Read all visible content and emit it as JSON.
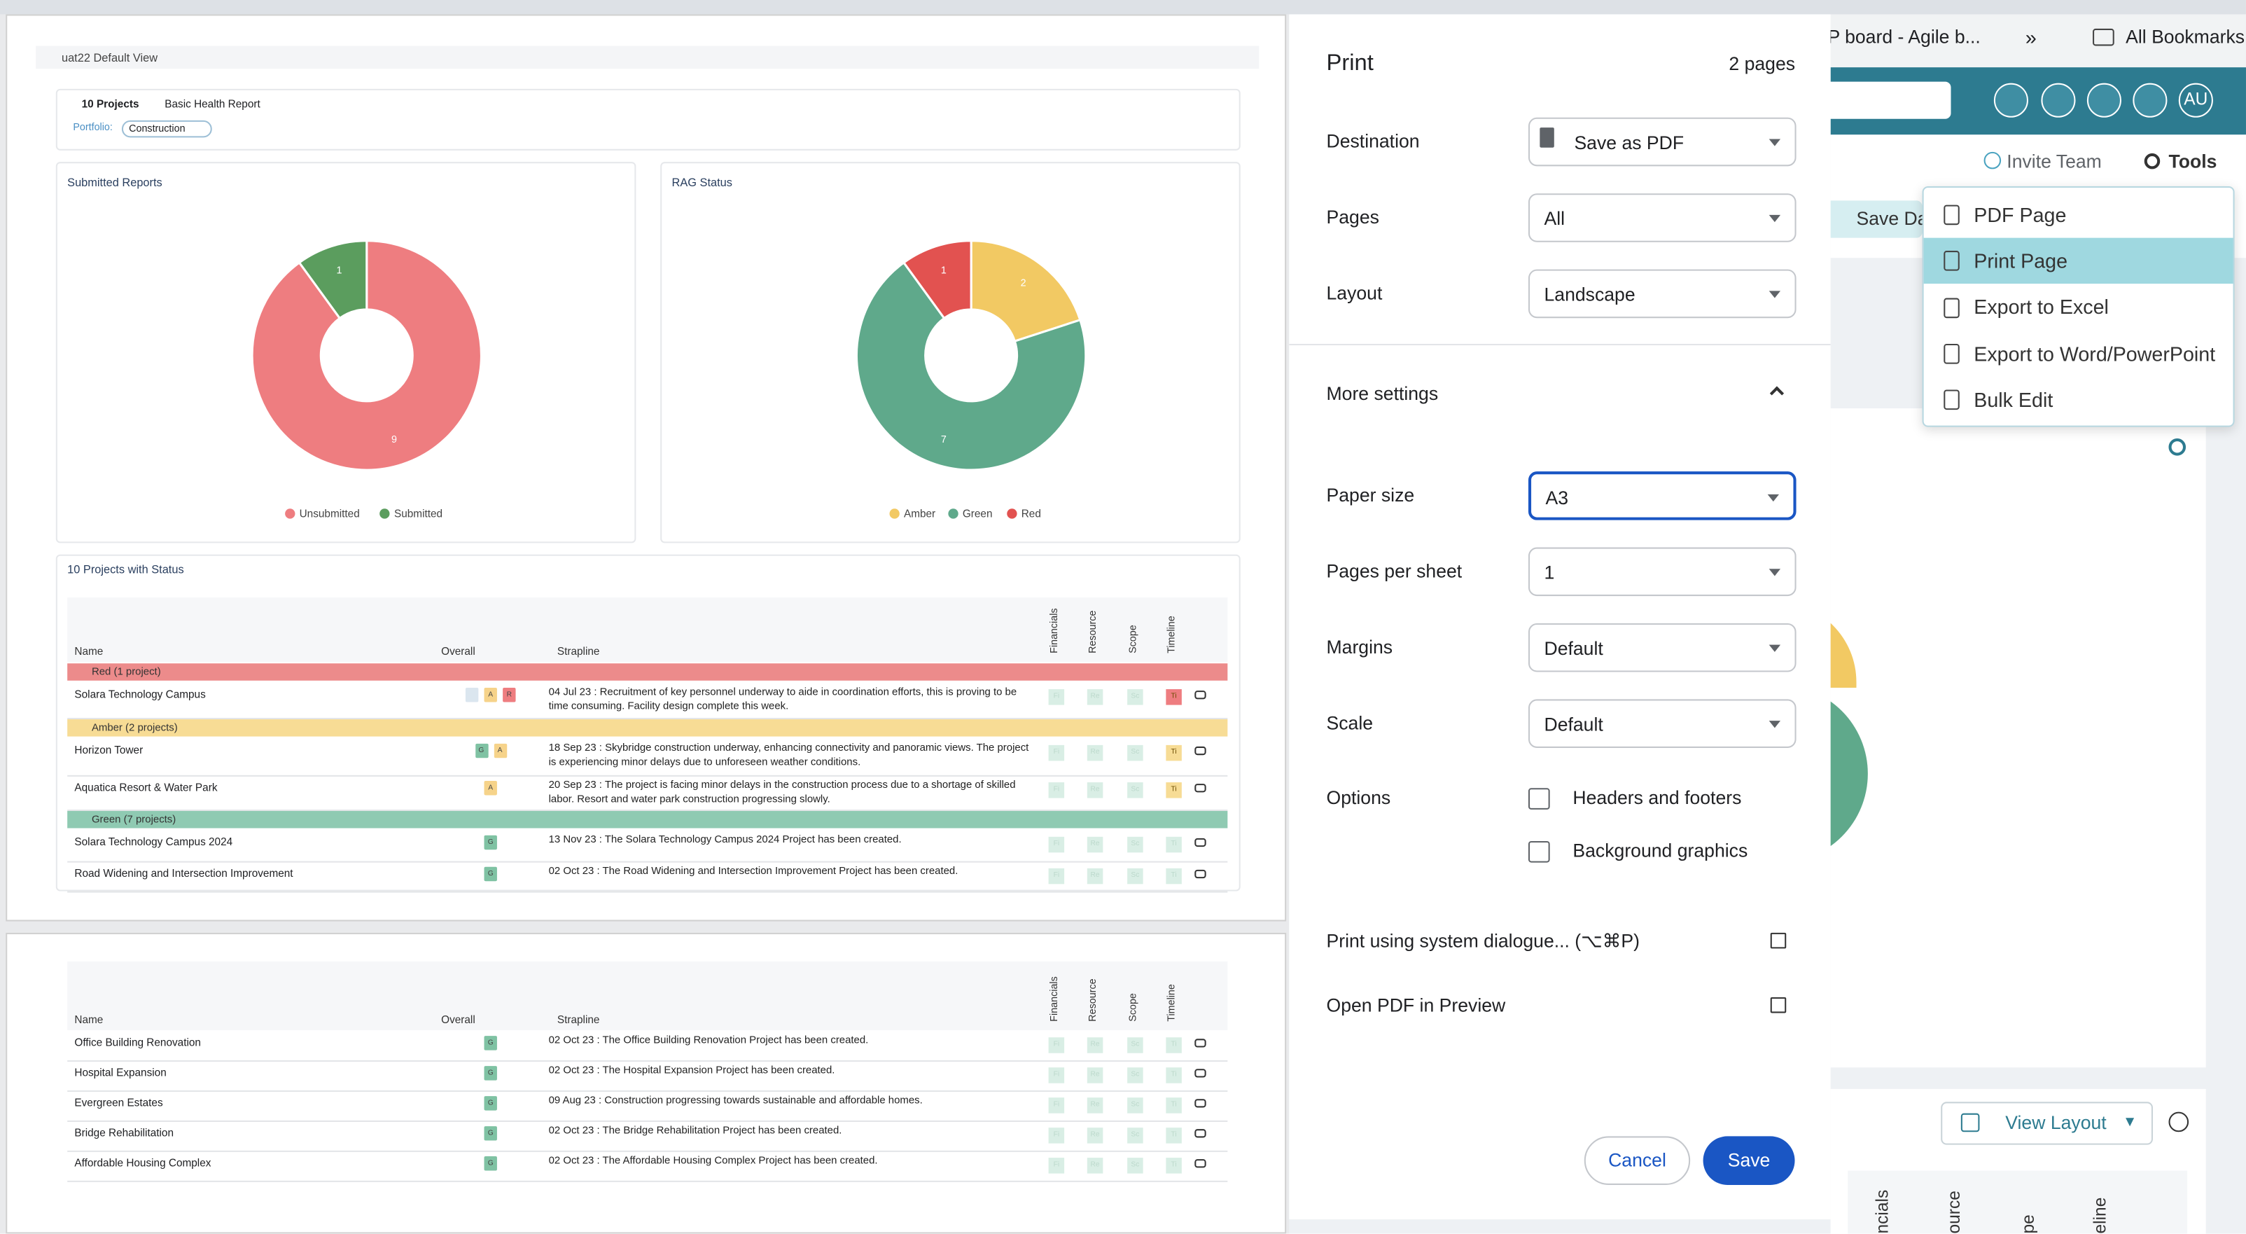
{
  "browser": {
    "bookmarks": [
      "FP board - Agile b...",
      "All Bookmarks"
    ]
  },
  "app": {
    "avatar": "AU",
    "invite": "Invite Team",
    "tools": "Tools",
    "save": "Save Da",
    "menu": [
      "PDF Page",
      "Print Page",
      "Export to Excel",
      "Export to Word/PowerPoint",
      "Bulk Edit"
    ],
    "menu_highlighted": 1,
    "view_layout": "View Layout",
    "columns": [
      "ncials",
      "ource",
      "pe",
      "eline"
    ]
  },
  "preview": {
    "view": "uat22 Default View",
    "projects": "10 Projects",
    "report": "Basic Health Report",
    "portfolio_label": "Portfolio:",
    "portfolio": "Construction",
    "charts": [
      {
        "type": "pie",
        "title": "Submitted Reports",
        "categories": [
          "Unsubmitted",
          "Submitted"
        ],
        "values": [
          9,
          1
        ],
        "colors": [
          "#ee7d80",
          "#5b9d5e"
        ]
      },
      {
        "type": "pie",
        "title": "RAG Status",
        "categories": [
          "Amber",
          "Green",
          "Red"
        ],
        "values": [
          2,
          7,
          1
        ],
        "colors": [
          "#f2c963",
          "#5fa98b",
          "#e25250"
        ]
      }
    ],
    "table": {
      "title": "10 Projects with Status",
      "headers": [
        "Name",
        "Overall",
        "Strapline"
      ],
      "status_columns": [
        "Financials",
        "Resource",
        "Scope",
        "Timeline"
      ],
      "cell_labels": [
        "Fi",
        "Re",
        "Sc",
        "Ti"
      ],
      "groups": [
        {
          "label": "Red (1 project)",
          "rag": "R",
          "rows": [
            {
              "name": "Solara Technology Campus",
              "overall": [
                "A",
                "R"
              ],
              "strapline": "04 Jul 23 : Recruitment of key personnel underway to aide in coordination efforts, this is proving to be time consuming. Facility design complete this week.",
              "status": [
                "G",
                "G",
                "G",
                "R"
              ]
            }
          ]
        },
        {
          "label": "Amber (2 projects)",
          "rag": "A",
          "rows": [
            {
              "name": "Horizon Tower",
              "overall": [
                "G",
                "A"
              ],
              "strapline": "18 Sep 23 : Skybridge construction underway, enhancing connectivity and panoramic views. The project is experiencing minor delays due to unforeseen weather conditions.",
              "status": [
                "G",
                "G",
                "G",
                "A"
              ]
            },
            {
              "name": "Aquatica Resort & Water Park",
              "overall": [
                "A"
              ],
              "strapline": "20 Sep 23 : The project is facing minor delays in the construction process due to a shortage of skilled labor. Resort and water park construction progressing slowly.",
              "status": [
                "G",
                "G",
                "G",
                "A"
              ]
            }
          ]
        },
        {
          "label": "Green (7 projects)",
          "rag": "G",
          "rows": [
            {
              "name": "Solara Technology Campus 2024",
              "overall": [
                "G"
              ],
              "strapline": "13 Nov 23 : The Solara Technology Campus 2024 Project has been created.",
              "status": [
                "G",
                "G",
                "G",
                "G"
              ]
            },
            {
              "name": "Road Widening and Intersection Improvement",
              "overall": [
                "G"
              ],
              "strapline": "02 Oct 23 : The Road Widening and Intersection Improvement Project has been created.",
              "status": [
                "G",
                "G",
                "G",
                "G"
              ]
            }
          ]
        }
      ],
      "page2_rows": [
        {
          "name": "Office Building Renovation",
          "overall": [
            "G"
          ],
          "strapline": "02 Oct 23 : The Office Building Renovation Project has been created.",
          "status": [
            "G",
            "G",
            "G",
            "G"
          ]
        },
        {
          "name": "Hospital Expansion",
          "overall": [
            "G"
          ],
          "strapline": "02 Oct 23 : The Hospital Expansion Project has been created.",
          "status": [
            "G",
            "G",
            "G",
            "G"
          ]
        },
        {
          "name": "Evergreen Estates",
          "overall": [
            "G"
          ],
          "strapline": "09 Aug 23 : Construction progressing towards sustainable and affordable homes.",
          "status": [
            "G",
            "G",
            "G",
            "G"
          ]
        },
        {
          "name": "Bridge Rehabilitation",
          "overall": [
            "G"
          ],
          "strapline": "02 Oct 23 : The Bridge Rehabilitation Project has been created.",
          "status": [
            "G",
            "G",
            "G",
            "G"
          ]
        },
        {
          "name": "Affordable Housing Complex",
          "overall": [
            "G"
          ],
          "strapline": "02 Oct 23 : The Affordable Housing Complex Project has been created.",
          "status": [
            "G",
            "G",
            "G",
            "G"
          ]
        }
      ]
    }
  },
  "dialog": {
    "title": "Print",
    "pages": "2 pages",
    "fields": [
      {
        "label": "Destination",
        "value": "Save as PDF"
      },
      {
        "label": "Pages",
        "value": "All"
      },
      {
        "label": "Layout",
        "value": "Landscape"
      }
    ],
    "more": "More settings",
    "more_fields": [
      {
        "label": "Paper size",
        "value": "A3",
        "focused": true
      },
      {
        "label": "Pages per sheet",
        "value": "1"
      },
      {
        "label": "Margins",
        "value": "Default"
      },
      {
        "label": "Scale",
        "value": "Default"
      }
    ],
    "options_label": "Options",
    "options": [
      "Headers and footers",
      "Background graphics"
    ],
    "links": [
      "Print using system dialogue... (⌥⌘P)",
      "Open PDF in Preview"
    ],
    "cancel": "Cancel",
    "save": "Save"
  }
}
